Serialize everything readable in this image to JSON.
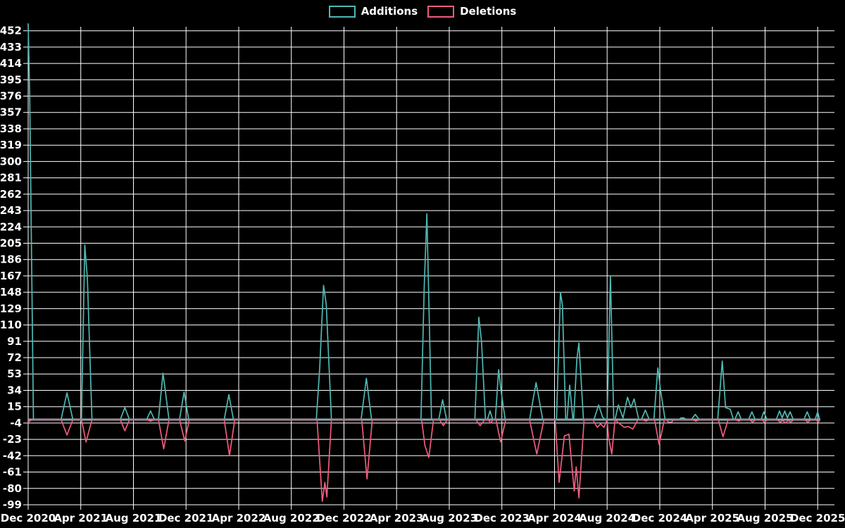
{
  "legend": [
    {
      "label": "Additions",
      "color": "#4fb8b2"
    },
    {
      "label": "Deletions",
      "color": "#f05c7e"
    }
  ],
  "colors": {
    "background": "#000000",
    "grid": "#ffffff",
    "zero_line": "#8ba4ac",
    "axis_text": "#ffffff",
    "additions": "#4fb8b2",
    "deletions": "#f05c7e"
  },
  "chart_data": {
    "type": "line",
    "title": "",
    "xlabel": "",
    "ylabel": "",
    "x_axis": {
      "unit": "months since Dec 2020",
      "tick_months": [
        0,
        4,
        8,
        12,
        16,
        20,
        24,
        28,
        32,
        36,
        40,
        44,
        48,
        52,
        56,
        60
      ],
      "tick_labels": [
        "Dec 2020",
        "Apr 2021",
        "Aug 2021",
        "Dec 2021",
        "Apr 2022",
        "Aug 2022",
        "Dec 2022",
        "Apr 2023",
        "Aug 2023",
        "Dec 2023",
        "Apr 2024",
        "Aug 2024",
        "Dec 2024",
        "Apr 2025",
        "Aug 2025",
        "Dec 2025"
      ]
    },
    "y_axis": {
      "ticks": [
        -99,
        -80,
        -61,
        -42,
        -23,
        -4,
        15,
        34,
        53,
        72,
        91,
        110,
        129,
        148,
        167,
        186,
        205,
        224,
        243,
        262,
        281,
        300,
        319,
        338,
        357,
        376,
        395,
        414,
        433,
        452
      ]
    },
    "ylim": [
      -99,
      460
    ],
    "xlim_months": [
      0,
      60.3
    ],
    "grid": true,
    "legend_position": "top-center",
    "zero_baseline": true,
    "series": [
      {
        "name": "Additions",
        "color": "#4fb8b2",
        "points": [
          [
            0,
            460
          ],
          [
            0.12,
            376
          ],
          [
            0.4,
            0
          ],
          [
            2.5,
            0
          ],
          [
            2.95,
            31
          ],
          [
            3.4,
            0
          ],
          [
            4.05,
            0
          ],
          [
            4.3,
            203
          ],
          [
            4.5,
            164
          ],
          [
            4.85,
            0
          ],
          [
            7.0,
            0
          ],
          [
            7.35,
            14
          ],
          [
            7.7,
            0
          ],
          [
            9.0,
            0
          ],
          [
            9.3,
            10
          ],
          [
            9.6,
            0
          ],
          [
            9.9,
            0
          ],
          [
            10.25,
            54
          ],
          [
            10.7,
            0
          ],
          [
            11.5,
            0
          ],
          [
            11.85,
            32
          ],
          [
            12.2,
            0
          ],
          [
            14.9,
            0
          ],
          [
            15.25,
            29
          ],
          [
            15.6,
            0
          ],
          [
            21.9,
            0
          ],
          [
            22.15,
            58
          ],
          [
            22.45,
            156
          ],
          [
            22.65,
            134
          ],
          [
            23.05,
            0
          ],
          [
            25.3,
            0
          ],
          [
            25.7,
            48
          ],
          [
            26.1,
            0
          ],
          [
            29.85,
            0
          ],
          [
            30.1,
            156
          ],
          [
            30.3,
            239
          ],
          [
            30.65,
            0
          ],
          [
            31.2,
            0
          ],
          [
            31.5,
            23
          ],
          [
            31.8,
            0
          ],
          [
            33.95,
            0
          ],
          [
            34.25,
            119
          ],
          [
            34.45,
            91
          ],
          [
            34.75,
            0
          ],
          [
            34.9,
            0
          ],
          [
            35.1,
            10
          ],
          [
            35.3,
            0
          ],
          [
            35.5,
            0
          ],
          [
            35.75,
            58
          ],
          [
            35.95,
            32
          ],
          [
            36.25,
            0
          ],
          [
            38.1,
            0
          ],
          [
            38.6,
            43
          ],
          [
            39.1,
            0
          ],
          [
            40.15,
            0
          ],
          [
            40.45,
            148
          ],
          [
            40.6,
            133
          ],
          [
            40.85,
            0
          ],
          [
            40.95,
            0
          ],
          [
            41.15,
            40
          ],
          [
            41.4,
            0
          ],
          [
            41.45,
            0
          ],
          [
            41.7,
            70
          ],
          [
            41.85,
            89
          ],
          [
            42.2,
            0
          ],
          [
            43.0,
            0
          ],
          [
            43.35,
            17
          ],
          [
            43.65,
            3
          ],
          [
            43.85,
            0
          ],
          [
            44.0,
            0
          ],
          [
            44.25,
            167
          ],
          [
            44.5,
            0
          ],
          [
            44.6,
            0
          ],
          [
            44.85,
            17
          ],
          [
            45.2,
            2
          ],
          [
            45.55,
            26
          ],
          [
            45.8,
            14
          ],
          [
            46.05,
            24
          ],
          [
            46.4,
            0
          ],
          [
            46.6,
            0
          ],
          [
            46.9,
            11
          ],
          [
            47.2,
            0
          ],
          [
            47.55,
            0
          ],
          [
            47.85,
            60
          ],
          [
            48.05,
            35
          ],
          [
            48.4,
            0
          ],
          [
            49.45,
            0
          ],
          [
            49.6,
            2
          ],
          [
            49.85,
            2
          ],
          [
            50.0,
            0
          ],
          [
            50.4,
            0
          ],
          [
            50.7,
            6
          ],
          [
            51.0,
            0
          ],
          [
            52.4,
            0
          ],
          [
            52.75,
            68
          ],
          [
            53.0,
            14
          ],
          [
            53.35,
            12
          ],
          [
            53.6,
            0
          ],
          [
            53.7,
            0
          ],
          [
            53.95,
            9
          ],
          [
            54.2,
            0
          ],
          [
            54.75,
            0
          ],
          [
            55.0,
            9
          ],
          [
            55.25,
            0
          ],
          [
            55.7,
            0
          ],
          [
            55.9,
            9
          ],
          [
            56.15,
            0
          ],
          [
            56.85,
            0
          ],
          [
            57.1,
            10
          ],
          [
            57.3,
            2
          ],
          [
            57.5,
            10
          ],
          [
            57.7,
            2
          ],
          [
            57.9,
            9
          ],
          [
            58.15,
            0
          ],
          [
            58.95,
            0
          ],
          [
            59.2,
            9
          ],
          [
            59.45,
            0
          ],
          [
            59.8,
            0
          ],
          [
            60.0,
            9
          ],
          [
            60.15,
            0
          ]
        ]
      },
      {
        "name": "Deletions",
        "color": "#f05c7e",
        "points": [
          [
            0,
            -3
          ],
          [
            0.3,
            0
          ],
          [
            2.5,
            0
          ],
          [
            2.95,
            -18
          ],
          [
            3.4,
            0
          ],
          [
            4.05,
            0
          ],
          [
            4.4,
            -26
          ],
          [
            4.85,
            0
          ],
          [
            7.0,
            0
          ],
          [
            7.35,
            -13
          ],
          [
            7.7,
            0
          ],
          [
            9.0,
            0
          ],
          [
            9.3,
            -2
          ],
          [
            9.6,
            0
          ],
          [
            9.9,
            0
          ],
          [
            10.3,
            -34
          ],
          [
            10.7,
            0
          ],
          [
            11.5,
            0
          ],
          [
            11.9,
            -25
          ],
          [
            12.25,
            0
          ],
          [
            14.9,
            0
          ],
          [
            15.3,
            -42
          ],
          [
            15.7,
            0
          ],
          [
            21.95,
            0
          ],
          [
            22.35,
            -95
          ],
          [
            22.55,
            -73
          ],
          [
            22.7,
            -90
          ],
          [
            23.05,
            0
          ],
          [
            25.35,
            0
          ],
          [
            25.75,
            -69
          ],
          [
            26.15,
            0
          ],
          [
            29.9,
            0
          ],
          [
            30.15,
            -30
          ],
          [
            30.45,
            -44
          ],
          [
            30.8,
            0
          ],
          [
            31.25,
            0
          ],
          [
            31.55,
            -7
          ],
          [
            31.85,
            0
          ],
          [
            34.0,
            0
          ],
          [
            34.35,
            -7
          ],
          [
            34.7,
            0
          ],
          [
            34.95,
            0
          ],
          [
            35.15,
            -4
          ],
          [
            35.35,
            0
          ],
          [
            35.55,
            0
          ],
          [
            35.9,
            -26
          ],
          [
            36.3,
            0
          ],
          [
            38.1,
            0
          ],
          [
            38.65,
            -40
          ],
          [
            39.2,
            0
          ],
          [
            40.05,
            0
          ],
          [
            40.35,
            -73
          ],
          [
            40.75,
            -19
          ],
          [
            41.1,
            -17
          ],
          [
            41.5,
            -83
          ],
          [
            41.65,
            -55
          ],
          [
            41.85,
            -91
          ],
          [
            42.25,
            0
          ],
          [
            42.9,
            0
          ],
          [
            43.25,
            -9
          ],
          [
            43.5,
            -5
          ],
          [
            43.75,
            -9
          ],
          [
            44.0,
            0
          ],
          [
            44.1,
            -20
          ],
          [
            44.35,
            -40
          ],
          [
            44.6,
            0
          ],
          [
            44.8,
            -3
          ],
          [
            45.3,
            -9
          ],
          [
            45.6,
            -8
          ],
          [
            45.95,
            -11
          ],
          [
            46.35,
            0
          ],
          [
            46.65,
            0
          ],
          [
            46.95,
            -2
          ],
          [
            47.2,
            0
          ],
          [
            47.6,
            0
          ],
          [
            47.95,
            -29
          ],
          [
            48.35,
            0
          ],
          [
            48.5,
            0
          ],
          [
            48.65,
            -3
          ],
          [
            48.9,
            -3
          ],
          [
            49.05,
            0
          ],
          [
            50.45,
            0
          ],
          [
            50.75,
            -2
          ],
          [
            51.0,
            0
          ],
          [
            52.45,
            0
          ],
          [
            52.8,
            -20
          ],
          [
            53.2,
            0
          ],
          [
            53.75,
            0
          ],
          [
            54.0,
            -2
          ],
          [
            54.2,
            0
          ],
          [
            54.8,
            0
          ],
          [
            55.05,
            -3
          ],
          [
            55.3,
            0
          ],
          [
            55.75,
            0
          ],
          [
            55.95,
            -3
          ],
          [
            56.2,
            0
          ],
          [
            56.9,
            0
          ],
          [
            57.15,
            -3
          ],
          [
            57.35,
            -1
          ],
          [
            57.55,
            -4
          ],
          [
            57.75,
            -1
          ],
          [
            57.95,
            -3
          ],
          [
            58.2,
            0
          ],
          [
            59.0,
            0
          ],
          [
            59.25,
            -3
          ],
          [
            59.5,
            0
          ],
          [
            59.85,
            0
          ],
          [
            60.05,
            -3
          ],
          [
            60.15,
            0
          ]
        ]
      }
    ]
  }
}
